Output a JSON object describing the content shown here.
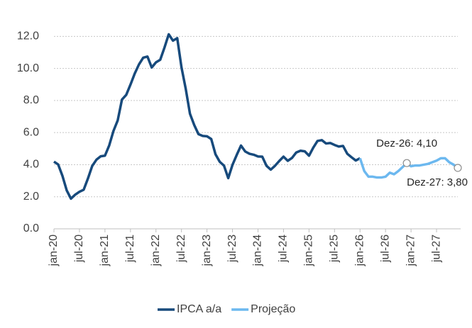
{
  "chart_data": {
    "type": "line",
    "categories": [
      "jan-20",
      null,
      null,
      null,
      null,
      null,
      "jul-20",
      null,
      null,
      null,
      null,
      null,
      "jan-21",
      null,
      null,
      null,
      null,
      null,
      "jul-21",
      null,
      null,
      null,
      null,
      null,
      "jan-22",
      null,
      null,
      null,
      null,
      null,
      "jul-22",
      null,
      null,
      null,
      null,
      null,
      "jan-23",
      null,
      null,
      null,
      null,
      null,
      "jul-23",
      null,
      null,
      null,
      null,
      null,
      "jan-24",
      null,
      null,
      null,
      null,
      null,
      "jul-24",
      null,
      null,
      null,
      null,
      null,
      "jan-25",
      null,
      null,
      null,
      null,
      null,
      "jul-25",
      null,
      null,
      null,
      null,
      null,
      "jan-26",
      null,
      null,
      null,
      null,
      null,
      "jul-26",
      null,
      null,
      null,
      null,
      null,
      "jan-27",
      null,
      null,
      null,
      null,
      null,
      "jul-27",
      null,
      null,
      null,
      null,
      null
    ],
    "series": [
      {
        "name": "IPCA a/a",
        "color": "#174a7c",
        "values": [
          4.19,
          4.01,
          3.3,
          2.4,
          1.88,
          2.13,
          2.31,
          2.44,
          3.14,
          3.92,
          4.31,
          4.52,
          4.56,
          5.2,
          6.1,
          6.76,
          8.06,
          8.35,
          8.99,
          9.68,
          10.25,
          10.67,
          10.74,
          10.06,
          10.38,
          10.54,
          11.3,
          12.13,
          11.73,
          11.89,
          10.07,
          8.73,
          7.17,
          6.47,
          5.9,
          5.79,
          5.77,
          5.6,
          4.65,
          4.18,
          3.94,
          3.16,
          3.99,
          4.61,
          5.19,
          4.82,
          4.68,
          4.62,
          4.51,
          4.5,
          3.93,
          3.69,
          3.93,
          4.23,
          4.5,
          4.24,
          4.42,
          4.76,
          4.87,
          4.83,
          4.56,
          5.06,
          5.48,
          5.53,
          5.32,
          5.35,
          5.23,
          5.13,
          5.17,
          4.68,
          4.46,
          4.26,
          4.4,
          null,
          null,
          null,
          null,
          null,
          null,
          null,
          null,
          null,
          null,
          null,
          null,
          null,
          null,
          null,
          null,
          null,
          null,
          null,
          null,
          null,
          null,
          null
        ]
      },
      {
        "name": "Projeção",
        "color": "#6cb8ef",
        "values": [
          null,
          null,
          null,
          null,
          null,
          null,
          null,
          null,
          null,
          null,
          null,
          null,
          null,
          null,
          null,
          null,
          null,
          null,
          null,
          null,
          null,
          null,
          null,
          null,
          null,
          null,
          null,
          null,
          null,
          null,
          null,
          null,
          null,
          null,
          null,
          null,
          null,
          null,
          null,
          null,
          null,
          null,
          null,
          null,
          null,
          null,
          null,
          null,
          null,
          null,
          null,
          null,
          null,
          null,
          null,
          null,
          null,
          null,
          null,
          null,
          null,
          null,
          null,
          null,
          null,
          null,
          null,
          null,
          null,
          null,
          null,
          null,
          4.4,
          3.6,
          3.25,
          3.25,
          3.2,
          3.2,
          3.25,
          3.5,
          3.4,
          3.6,
          3.85,
          4.1,
          3.9,
          3.95,
          3.95,
          4.0,
          4.05,
          4.15,
          4.25,
          4.4,
          4.4,
          4.15,
          4.0,
          3.8
        ]
      }
    ],
    "ylim": [
      0,
      12.5
    ],
    "yticks": [
      {
        "value": 0,
        "label": "0.0"
      },
      {
        "value": 2,
        "label": "2.0"
      },
      {
        "value": 4,
        "label": "4.0"
      },
      {
        "value": 6,
        "label": "6.0"
      },
      {
        "value": 8,
        "label": "8.0"
      },
      {
        "value": 10,
        "label": "10.0"
      },
      {
        "value": 12,
        "label": "12.0"
      }
    ],
    "grid": true,
    "legend": "bottom",
    "annotations": [
      {
        "text": "Dez-26: 4,10",
        "value": 4.1
      },
      {
        "text": "Dez-27: 3,80",
        "value": 3.8
      }
    ]
  }
}
